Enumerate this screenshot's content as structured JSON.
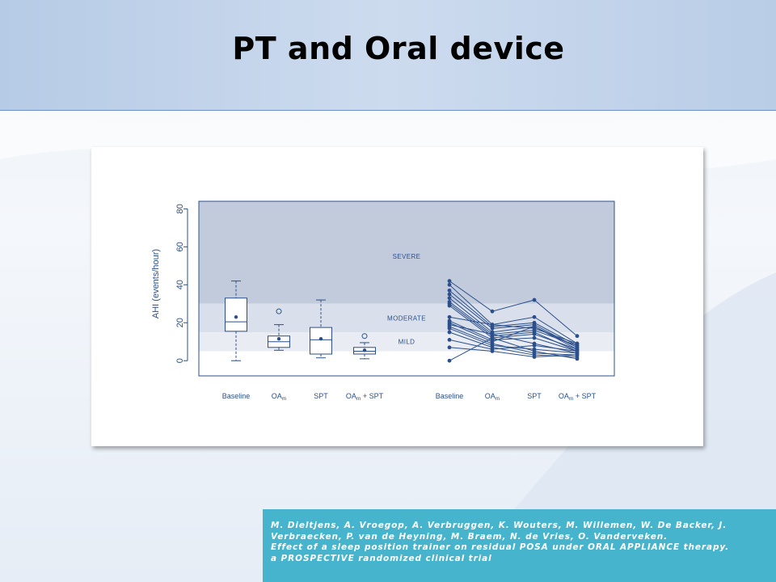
{
  "slide": {
    "title": "PT and Oral device"
  },
  "citation": {
    "line1": "M. Dieltjens, A. Vroegop, A. Verbruggen, K. Wouters, M. Willemen, W. De Backer, J.",
    "line2": "Verbraecken, P. van de Heyning, M. Braem, N. de Vries, O. Vanderveken.",
    "line3": "Effect of a sleep position trainer on residual POSA under ORAL APPLIANCE therapy.",
    "line4": "a PROSPECTIVE randomized clinical  trial"
  },
  "colors": {
    "series": "#2b4f8c",
    "severe_band": "#c2cbdc",
    "moderate_band": "#dae0eb",
    "mild_band": "#e9edf3",
    "citation_bg": "#45b4cc"
  },
  "chart_data": {
    "type": "box-and-spaghetti",
    "ylabel": "AHI (events/hour)",
    "xlabel": "",
    "ylim": [
      -8,
      84
    ],
    "yticks": [
      0,
      20,
      40,
      60,
      80
    ],
    "bands": [
      {
        "label": "SEVERE",
        "from": 30,
        "to": 84
      },
      {
        "label": "MODERATE",
        "from": 15,
        "to": 30
      },
      {
        "label": "MILD",
        "from": 5,
        "to": 15
      }
    ],
    "boxplots": [
      {
        "label": "Baseline",
        "min": 0,
        "q1": 15.5,
        "median": 20.5,
        "q3": 33,
        "max": 42,
        "mean": 23,
        "outliers": []
      },
      {
        "label": "OA",
        "sub": "m",
        "suffix": "",
        "min": 5.5,
        "q1": 7,
        "median": 10,
        "q3": 13,
        "max": 19,
        "mean": 11.5,
        "outliers": [
          26
        ]
      },
      {
        "label": "SPT",
        "min": 1.5,
        "q1": 3.5,
        "median": 11,
        "q3": 17.5,
        "max": 32,
        "mean": 11.5,
        "outliers": []
      },
      {
        "label": "OA",
        "sub": "m",
        "suffix": " + SPT",
        "min": 1,
        "q1": 3.5,
        "median": 5,
        "q3": 7,
        "max": 9.5,
        "mean": 5.5,
        "outliers": [
          13
        ]
      }
    ],
    "spaghetti_categories": [
      {
        "label": "Baseline"
      },
      {
        "label": "OA",
        "sub": "m",
        "suffix": ""
      },
      {
        "label": "SPT"
      },
      {
        "label": "OA",
        "sub": "m",
        "suffix": " + SPT"
      }
    ],
    "patients": [
      [
        42,
        26,
        32,
        13
      ],
      [
        40,
        19,
        23,
        9
      ],
      [
        37,
        18,
        20,
        8
      ],
      [
        35,
        17,
        19,
        7
      ],
      [
        33,
        15,
        18,
        6
      ],
      [
        31,
        14,
        16,
        8
      ],
      [
        30,
        13,
        15,
        5
      ],
      [
        29,
        12,
        14,
        6
      ],
      [
        23,
        19,
        17,
        9
      ],
      [
        21,
        11,
        12,
        5
      ],
      [
        20,
        10,
        18,
        7
      ],
      [
        19,
        14,
        9,
        4
      ],
      [
        18,
        9,
        4,
        3
      ],
      [
        17,
        8,
        6,
        4
      ],
      [
        15,
        7,
        3,
        2
      ],
      [
        11,
        6,
        8,
        5
      ],
      [
        7,
        5,
        2,
        3
      ],
      [
        0,
        12,
        5,
        1
      ]
    ]
  }
}
